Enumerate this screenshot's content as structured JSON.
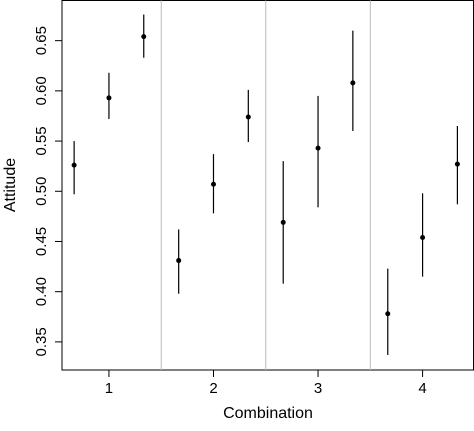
{
  "chart_data": {
    "type": "errorbar",
    "xlabel": "Combination",
    "ylabel": "Attitude",
    "x": [
      0.667,
      1,
      1.333,
      1.667,
      2,
      2.333,
      2.667,
      3,
      3.333,
      3.667,
      4,
      4.333
    ],
    "values": [
      0.526,
      0.593,
      0.654,
      0.431,
      0.507,
      0.574,
      0.469,
      0.543,
      0.608,
      0.378,
      0.454,
      0.527
    ],
    "lower": [
      0.497,
      0.572,
      0.633,
      0.398,
      0.478,
      0.549,
      0.408,
      0.484,
      0.56,
      0.337,
      0.415,
      0.487
    ],
    "upper": [
      0.55,
      0.618,
      0.676,
      0.462,
      0.537,
      0.601,
      0.53,
      0.595,
      0.66,
      0.423,
      0.498,
      0.565
    ],
    "color": "#000000",
    "separators": [
      1.5,
      2.5,
      3.5
    ],
    "separator_color": "#bbbbbb",
    "xlim": [
      0.551,
      4.487
    ],
    "xticks": [
      1,
      2,
      3,
      4
    ],
    "ylim": [
      0.322,
      0.69
    ],
    "yticks": [
      0.35,
      {
        "value": 0.4,
        "label": "0.40"
      },
      0.45,
      {
        "value": 0.5,
        "label": "0.50"
      },
      0.55,
      {
        "value": 0.6,
        "label": "0.60"
      },
      0.65
    ]
  }
}
